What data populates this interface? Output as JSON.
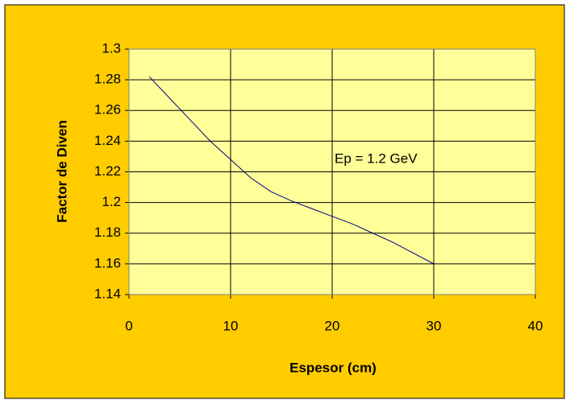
{
  "chart_data": {
    "type": "line",
    "x": [
      2,
      4,
      6,
      8,
      10,
      12,
      14,
      16,
      18,
      20,
      22,
      24,
      26,
      28,
      30
    ],
    "series": [
      {
        "name": "Ep = 1.2 GeV",
        "color": "#000080",
        "values": [
          1.282,
          1.268,
          1.254,
          1.24,
          1.228,
          1.216,
          1.207,
          1.201,
          1.196,
          1.191,
          1.186,
          1.18,
          1.174,
          1.167,
          1.16
        ]
      }
    ],
    "xlabel": "Espesor (cm)",
    "ylabel": "Factor de Diven",
    "annotation": "Ep = 1.2 GeV",
    "xlim": [
      0,
      40
    ],
    "xticks": [
      0,
      10,
      20,
      30,
      40
    ],
    "ylim": [
      1.14,
      1.3
    ],
    "yticks": [
      1.14,
      1.16,
      1.18,
      1.2,
      1.22,
      1.24,
      1.26,
      1.28,
      1.3
    ],
    "grid": true
  }
}
